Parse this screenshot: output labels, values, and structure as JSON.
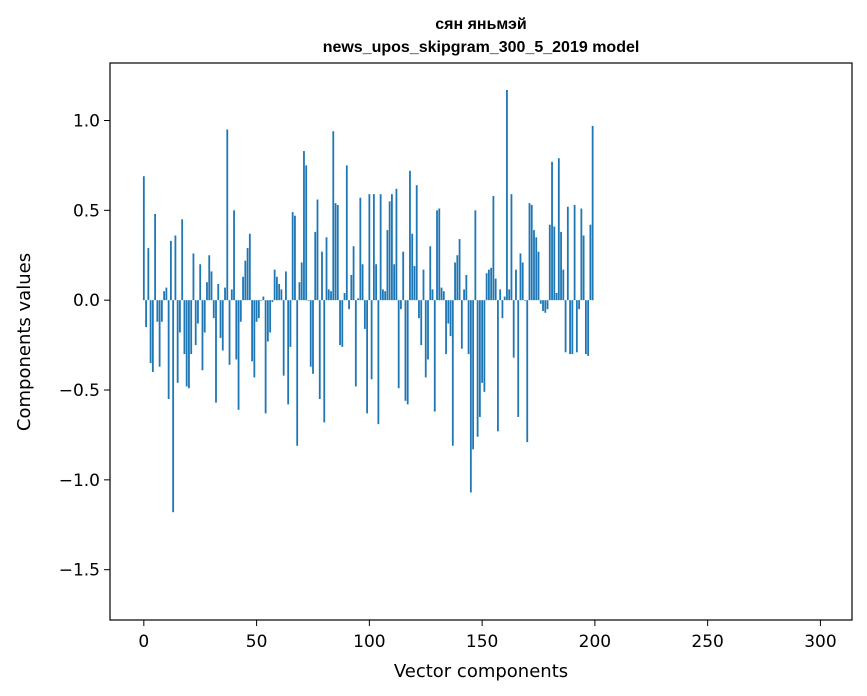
{
  "chart_data": {
    "type": "bar",
    "title_line1": "сян яньмэй",
    "title_line2": "news_upos_skipgram_300_5_2019 model",
    "xlabel": "Vector components",
    "ylabel": "Components values",
    "xlim": [
      -15,
      314
    ],
    "ylim": [
      -1.78,
      1.32
    ],
    "xticks": [
      0,
      50,
      100,
      150,
      200,
      250,
      300
    ],
    "xtick_labels": [
      "0",
      "50",
      "100",
      "150",
      "200",
      "250",
      "300"
    ],
    "yticks": [
      1.0,
      0.5,
      0.0,
      -0.5,
      -1.0,
      -1.5
    ],
    "ytick_labels": [
      "1.0",
      "0.5",
      "0.0",
      "−0.5",
      "−1.0",
      "−1.5"
    ],
    "bar_color": "#1f77b4",
    "grid": false,
    "values": [
      0.69,
      -0.15,
      0.29,
      -0.35,
      -0.4,
      0.48,
      -0.12,
      -0.37,
      -0.12,
      0.05,
      0.07,
      -0.55,
      0.33,
      -1.18,
      0.36,
      -0.46,
      -0.18,
      0.45,
      -0.3,
      -0.48,
      -0.49,
      -0.3,
      0.26,
      -0.25,
      -0.13,
      0.2,
      -0.39,
      -0.18,
      0.1,
      0.25,
      0.16,
      -0.1,
      -0.57,
      0.09,
      -0.21,
      -0.28,
      0.07,
      0.95,
      -0.36,
      0.06,
      0.5,
      -0.33,
      -0.61,
      -0.12,
      0.13,
      0.22,
      0.29,
      0.37,
      -0.34,
      -0.43,
      -0.12,
      -0.1,
      0.0,
      0.02,
      -0.63,
      -0.23,
      -0.18,
      -0.01,
      0.17,
      0.13,
      0.09,
      0.06,
      -0.42,
      0.16,
      -0.58,
      -0.26,
      0.49,
      0.47,
      -0.81,
      0.1,
      0.21,
      0.83,
      0.75,
      0.0,
      -0.37,
      -0.41,
      0.38,
      0.56,
      -0.55,
      0.27,
      -0.68,
      0.35,
      0.06,
      0.05,
      0.94,
      0.54,
      0.53,
      -0.25,
      -0.26,
      0.04,
      0.75,
      -0.05,
      0.14,
      0.3,
      -0.48,
      0.01,
      0.57,
      0.2,
      -0.16,
      -0.63,
      0.59,
      -0.44,
      0.59,
      0.2,
      -0.69,
      0.59,
      0.06,
      0.05,
      0.39,
      0.55,
      0.59,
      0.2,
      0.62,
      -0.49,
      -0.05,
      0.27,
      -0.56,
      -0.58,
      0.72,
      0.37,
      0.19,
      0.64,
      -0.1,
      -0.25,
      0.17,
      -0.43,
      -0.33,
      0.3,
      0.06,
      -0.62,
      0.5,
      0.51,
      0.07,
      0.05,
      -0.3,
      -0.13,
      -0.2,
      -0.81,
      0.21,
      0.25,
      0.34,
      -0.27,
      0.06,
      0.14,
      -0.3,
      -1.07,
      -0.83,
      0.5,
      -0.76,
      -0.65,
      -0.46,
      -0.51,
      0.15,
      0.17,
      0.18,
      0.58,
      0.12,
      -0.73,
      0.06,
      -0.1,
      0.02,
      1.17,
      0.06,
      0.59,
      -0.32,
      0.17,
      -0.65,
      0.26,
      0.21,
      0.0,
      -0.79,
      0.54,
      0.53,
      0.39,
      0.35,
      0.27,
      -0.02,
      -0.06,
      -0.07,
      -0.05,
      0.42,
      0.77,
      0.41,
      0.04,
      0.79,
      0.38,
      0.17,
      -0.29,
      0.52,
      -0.3,
      -0.3,
      0.53,
      -0.29,
      -0.05,
      0.51,
      0.36,
      -0.3,
      -0.31,
      0.42,
      0.97
    ]
  }
}
